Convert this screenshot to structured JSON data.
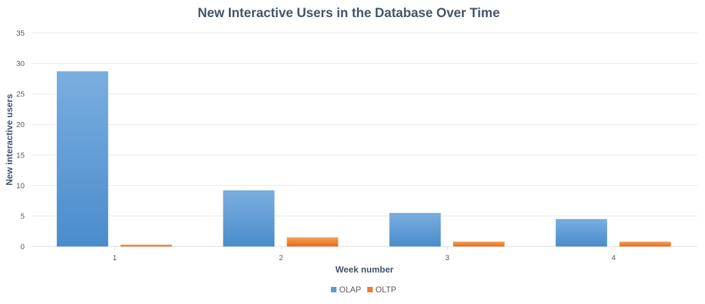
{
  "chart_data": {
    "type": "bar",
    "title": "New Interactive Users in the Database Over Time",
    "xlabel": "Week number",
    "ylabel": "New interactive users",
    "categories": [
      "1",
      "2",
      "3",
      "4"
    ],
    "series": [
      {
        "name": "OLAP",
        "values": [
          28.7,
          9.2,
          5.5,
          4.5
        ],
        "color": "#5b9bd5"
      },
      {
        "name": "OLTP",
        "values": [
          0.3,
          1.5,
          0.8,
          0.8
        ],
        "color": "#ed7d31"
      }
    ],
    "ylim": [
      0,
      35
    ],
    "yticks": [
      0,
      5,
      10,
      15,
      20,
      25,
      30,
      35
    ],
    "grid": true,
    "legend_position": "bottom"
  },
  "colors": {
    "olap_top": "#7aaee0",
    "olap_bottom": "#4a8ccc",
    "oltp_top": "#f4a05a",
    "oltp_bottom": "#e46c1b"
  }
}
